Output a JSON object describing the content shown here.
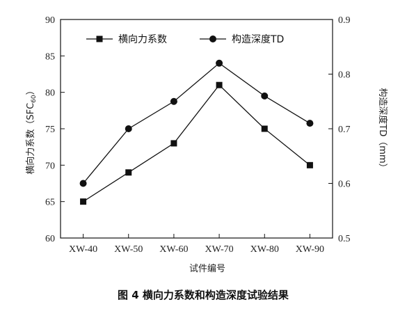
{
  "chart_data": {
    "type": "line",
    "caption": "图 4   横向力系数和构造深度试验结果",
    "xlabel": "试件编号",
    "ylabel_left": "横向力系数（SFC",
    "ylabel_left_sub": "60",
    "ylabel_left_close": "）",
    "ylabel_right": "构造深度TD（mm）",
    "categories": [
      "XW-40",
      "XW-50",
      "XW-60",
      "XW-70",
      "XW-80",
      "XW-90"
    ],
    "y_left": {
      "min": 60,
      "max": 90,
      "ticks": [
        60,
        65,
        70,
        75,
        80,
        85,
        90
      ]
    },
    "y_right": {
      "min": 0.5,
      "max": 0.9,
      "ticks": [
        "0.5",
        "0.6",
        "0.7",
        "0.8",
        "0.9"
      ]
    },
    "grid": false,
    "legend_position": "top",
    "series": [
      {
        "name": "横向力系数",
        "axis": "left",
        "marker": "square",
        "values": [
          65,
          69,
          73,
          81,
          75,
          70
        ]
      },
      {
        "name": "构造深度TD",
        "axis": "right",
        "marker": "circle",
        "values": [
          0.6,
          0.7,
          0.75,
          0.82,
          0.76,
          0.71
        ]
      }
    ]
  }
}
